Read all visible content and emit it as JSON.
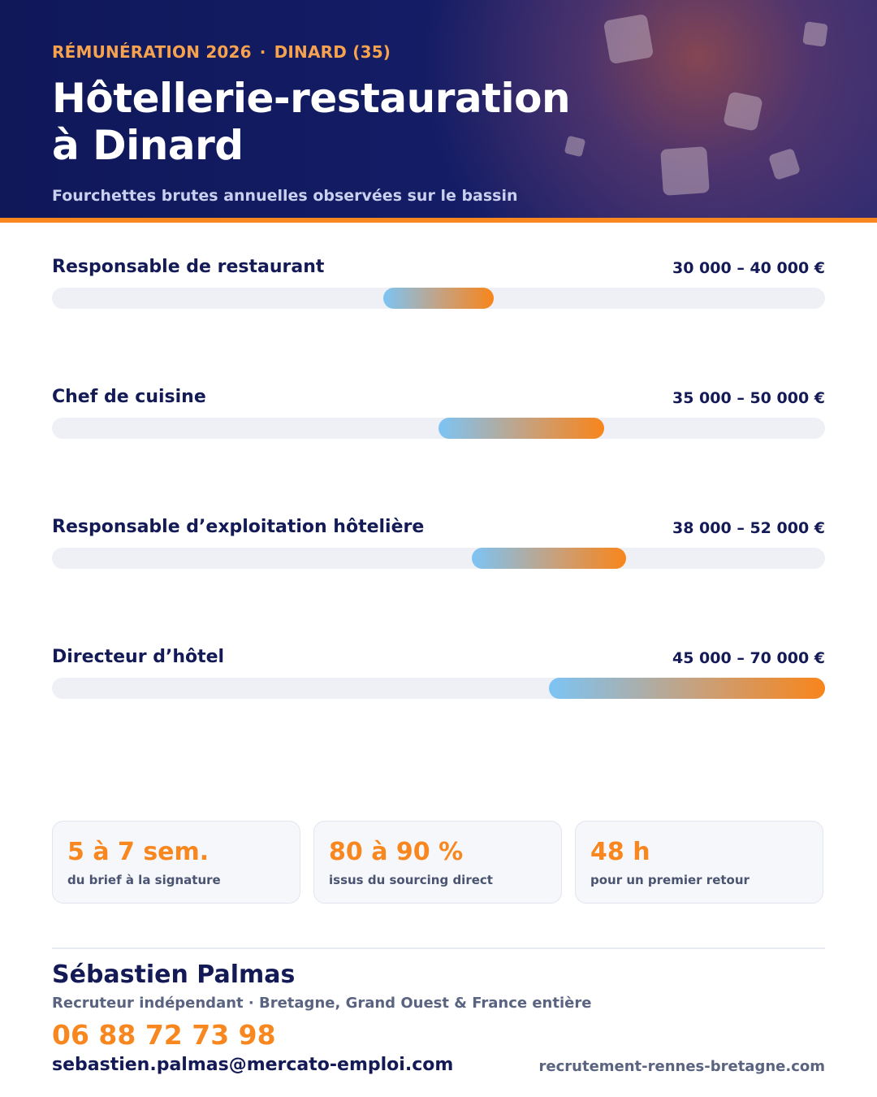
{
  "header": {
    "eyebrow_left": "RÉMUNÉRATION 2026",
    "eyebrow_separator": "·",
    "eyebrow_right": "DINARD (35)",
    "title_line1": "Hôtellerie-restauration",
    "title_line2": "à Dinard",
    "subtitle": "Fourchettes brutes annuelles observées sur le bassin"
  },
  "chart_data": {
    "type": "bar",
    "orientation": "horizontal-range",
    "unit": "€",
    "xlim": [
      0,
      70000
    ],
    "grid": false,
    "categories": [
      "Responsable de restaurant",
      "Chef de cuisine",
      "Responsable d’exploitation hôtelière",
      "Directeur d’hôtel"
    ],
    "series": [
      {
        "min": 30000,
        "max": 40000,
        "label": "30 000 – 40 000 €"
      },
      {
        "min": 35000,
        "max": 50000,
        "label": "35 000 – 50 000 €"
      },
      {
        "min": 38000,
        "max": 52000,
        "label": "38 000 – 52 000 €"
      },
      {
        "min": 45000,
        "max": 70000,
        "label": "45 000 – 70 000 €"
      }
    ]
  },
  "stats": [
    {
      "value": "5 à 7 sem.",
      "caption": "du brief à la signature"
    },
    {
      "value": "80 à 90 %",
      "caption": "issus du sourcing direct"
    },
    {
      "value": "48 h",
      "caption": "pour un premier retour"
    }
  ],
  "contact": {
    "name": "Sébastien Palmas",
    "role": "Recruteur indépendant · Bretagne, Grand Ouest & France entière",
    "phone": "06 88 72 73 98",
    "email": "sebastien.palmas@mercato-emploi.com",
    "website": "recrutement-rennes-bretagne.com"
  },
  "colors": {
    "navy": "#131a56",
    "accent_orange": "#f7871e",
    "gradient_start": "#7cc4f5",
    "gradient_end": "#f8851b",
    "track": "#eef0f6"
  }
}
